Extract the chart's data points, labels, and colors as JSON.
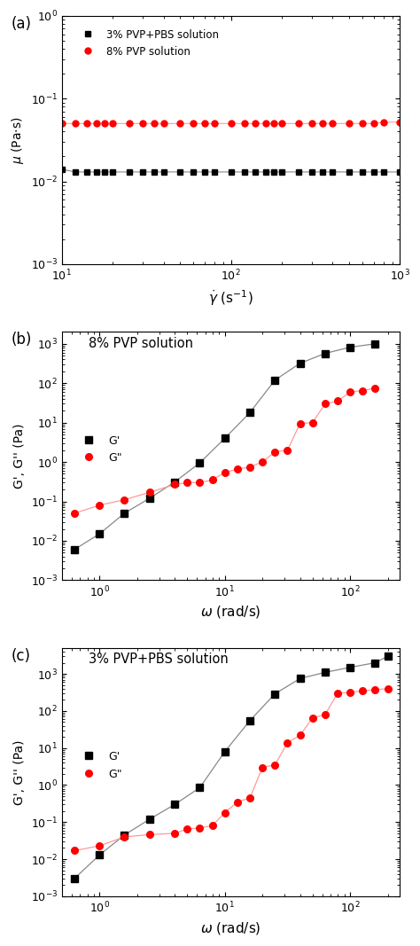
{
  "panel_a": {
    "label": "(a)",
    "pvp3_x": [
      10,
      12,
      14,
      16,
      18,
      20,
      25,
      30,
      35,
      40,
      50,
      60,
      70,
      80,
      100,
      120,
      140,
      160,
      180,
      200,
      250,
      300,
      350,
      400,
      500,
      600,
      700,
      800,
      1000
    ],
    "pvp3_y": [
      0.014,
      0.013,
      0.013,
      0.013,
      0.013,
      0.013,
      0.013,
      0.013,
      0.013,
      0.013,
      0.013,
      0.013,
      0.013,
      0.013,
      0.013,
      0.013,
      0.013,
      0.013,
      0.013,
      0.013,
      0.013,
      0.013,
      0.013,
      0.013,
      0.013,
      0.013,
      0.013,
      0.013,
      0.013
    ],
    "pvp8_x": [
      10,
      12,
      14,
      16,
      18,
      20,
      25,
      30,
      35,
      40,
      50,
      60,
      70,
      80,
      100,
      120,
      140,
      160,
      180,
      200,
      250,
      300,
      350,
      400,
      500,
      600,
      700,
      800,
      1000
    ],
    "pvp8_y": [
      0.05,
      0.05,
      0.05,
      0.05,
      0.05,
      0.05,
      0.05,
      0.05,
      0.05,
      0.05,
      0.05,
      0.05,
      0.05,
      0.05,
      0.05,
      0.05,
      0.05,
      0.05,
      0.05,
      0.05,
      0.05,
      0.05,
      0.05,
      0.05,
      0.05,
      0.05,
      0.05,
      0.052,
      0.052
    ],
    "pvp3_color": "#000000",
    "pvp8_color": "#ff0000",
    "pvp3_marker": "s",
    "pvp8_marker": "o",
    "pvp3_line_color": "#888888",
    "pvp8_line_color": "#ff9999",
    "pvp3_label": "3% PVP+PBS solution",
    "pvp8_label": "8% PVP solution",
    "xlabel": "$\\dot{\\gamma}$ (s$^{-1}$)",
    "ylabel": "$\\mu$ (Pa·s)",
    "xlim": [
      10,
      1000
    ],
    "ylim": [
      0.001,
      1
    ]
  },
  "panel_b": {
    "label": "(b)",
    "title": "8% PVP solution",
    "Gp_x": [
      0.63,
      1.0,
      1.58,
      2.51,
      3.98,
      6.31,
      10.0,
      15.85,
      25.12,
      39.81,
      63.1,
      100.0,
      158.5
    ],
    "Gp_y": [
      0.006,
      0.015,
      0.05,
      0.12,
      0.31,
      0.95,
      4.0,
      18.0,
      120.0,
      320.0,
      570.0,
      820.0,
      1000.0
    ],
    "Gpp_x": [
      0.63,
      1.0,
      1.58,
      2.51,
      3.98,
      5.01,
      6.31,
      7.94,
      10.0,
      12.59,
      15.85,
      19.95,
      25.12,
      31.62,
      39.81,
      50.12,
      63.1,
      79.43,
      100.0,
      125.9,
      158.5
    ],
    "Gpp_y": [
      0.05,
      0.08,
      0.11,
      0.17,
      0.27,
      0.3,
      0.3,
      0.35,
      0.55,
      0.65,
      0.75,
      1.0,
      1.8,
      2.0,
      9.5,
      10.0,
      30.0,
      35.0,
      60.0,
      65.0,
      75.0
    ],
    "Gp_color": "#000000",
    "Gpp_color": "#ff0000",
    "Gp_line_color": "#888888",
    "Gpp_line_color": "#ff9999",
    "Gp_marker": "s",
    "Gpp_marker": "o",
    "Gp_label": "G'",
    "Gpp_label": "G\"",
    "xlabel": "$\\omega$ (rad/s)",
    "ylabel": "G', G'' (Pa)",
    "xlim": [
      0.5,
      250
    ],
    "ylim": [
      0.001,
      2000
    ]
  },
  "panel_c": {
    "label": "(c)",
    "title": "3% PVP+PBS solution",
    "Gp_x": [
      0.63,
      1.0,
      1.58,
      2.51,
      3.98,
      6.31,
      10.0,
      15.85,
      25.12,
      39.81,
      63.1,
      100.0,
      158.5,
      200.0
    ],
    "Gp_y": [
      0.003,
      0.013,
      0.045,
      0.12,
      0.3,
      0.85,
      8.0,
      55.0,
      290.0,
      750.0,
      1100.0,
      1500.0,
      2000.0,
      3000.0
    ],
    "Gpp_x": [
      0.63,
      1.0,
      1.58,
      2.51,
      3.98,
      5.01,
      6.31,
      7.94,
      10.0,
      12.59,
      15.85,
      19.95,
      25.12,
      31.62,
      39.81,
      50.12,
      63.1,
      79.43,
      100.0,
      125.9,
      158.5,
      200.0
    ],
    "Gpp_y": [
      0.017,
      0.023,
      0.04,
      0.046,
      0.05,
      0.065,
      0.07,
      0.08,
      0.18,
      0.35,
      0.45,
      3.0,
      3.5,
      14.0,
      22.0,
      65.0,
      80.0,
      300.0,
      320.0,
      350.0,
      375.0,
      400.0
    ],
    "Gp_color": "#000000",
    "Gpp_color": "#ff0000",
    "Gp_line_color": "#888888",
    "Gpp_line_color": "#ff9999",
    "Gp_marker": "s",
    "Gpp_marker": "o",
    "Gp_label": "G'",
    "Gpp_label": "G\"",
    "xlabel": "$\\omega$ (rad/s)",
    "ylabel": "G', G'' (Pa)",
    "xlim": [
      0.5,
      250
    ],
    "ylim": [
      0.001,
      5000
    ]
  }
}
